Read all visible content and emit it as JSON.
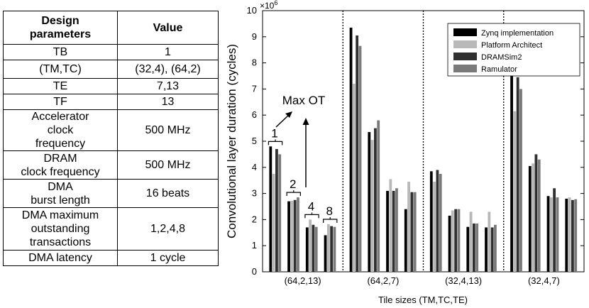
{
  "table": {
    "headers": [
      "Design\nparameters",
      "Value"
    ],
    "rows": [
      [
        "TB",
        "1"
      ],
      [
        "(TM,TC)",
        "(32,4), (64,2)"
      ],
      [
        "TE",
        "7,13"
      ],
      [
        "TF",
        "13"
      ],
      [
        "Accelerator\nclock\nfrequency",
        "500 MHz"
      ],
      [
        "DRAM\nclock frequency",
        "500 MHz"
      ],
      [
        "DMA\nburst length",
        "16 beats"
      ],
      [
        "DMA maximum\noutstanding\ntransactions",
        "1,2,4,8"
      ],
      [
        "DMA latency",
        "1 cycle"
      ]
    ]
  },
  "chart_data": {
    "type": "bar",
    "title": "",
    "ylabel": "Convolutional layer duration (cycles)",
    "xlabel": "Tile sizes (TM,TC,TE)",
    "y_multiplier": "×10",
    "y_multiplier_exp": "6",
    "ylim": [
      0,
      10
    ],
    "yticks": [
      "0",
      "1",
      "2",
      "3",
      "4",
      "5",
      "6",
      "7",
      "8",
      "9",
      "10"
    ],
    "groups": [
      "(64,2,13)",
      "(64,2,7)",
      "(32,4,13)",
      "(32,4,7)"
    ],
    "outstanding_transactions": [
      1,
      2,
      4,
      8
    ],
    "series": [
      {
        "name": "Zynq implementation",
        "color": "#000000",
        "values": [
          4.8,
          2.7,
          1.7,
          1.4,
          9.35,
          5.35,
          3.1,
          2.4,
          3.85,
          2.15,
          1.72,
          1.7,
          7.5,
          4.05,
          2.9,
          2.8
        ]
      },
      {
        "name": "Platform Architect",
        "color": "#b8b8b8",
        "values": [
          3.75,
          2.72,
          2.0,
          1.82,
          7.2,
          5.05,
          3.55,
          3.45,
          3.45,
          2.35,
          2.3,
          2.3,
          6.15,
          4.15,
          2.85,
          2.85
        ]
      },
      {
        "name": "DRAMSim2",
        "color": "#303030",
        "values": [
          4.7,
          2.75,
          1.8,
          1.75,
          9.05,
          5.5,
          3.1,
          3.05,
          3.9,
          2.4,
          1.85,
          1.7,
          7.45,
          4.5,
          3.2,
          2.75
        ]
      },
      {
        "name": "Ramulator",
        "color": "#7a7a7a",
        "values": [
          4.5,
          2.85,
          1.72,
          1.72,
          8.65,
          5.8,
          3.2,
          3.05,
          3.75,
          2.4,
          1.85,
          1.8,
          7.0,
          4.3,
          2.85,
          2.78
        ]
      }
    ],
    "annotations": {
      "max_ot_label": "Max OT",
      "ot_labels": [
        "1",
        "2",
        "4",
        "8"
      ]
    }
  }
}
